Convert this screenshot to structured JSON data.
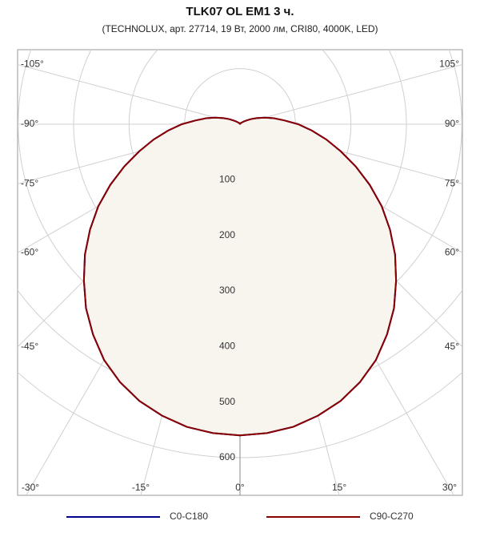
{
  "chart_data": {
    "type": "polar",
    "title": "TLK07 OL EM1 3 ч.",
    "subtitle": "(TECHNOLUX, арт. 27714, 19 Вт, 2000 лм, CRI80, 4000K, LED)",
    "rlim": [
      0,
      600
    ],
    "rticks": [
      100,
      200,
      300,
      400,
      500,
      600
    ],
    "thetaticks": [
      {
        "value": -105,
        "label": "-105°"
      },
      {
        "value": -90,
        "label": "-90°"
      },
      {
        "value": -75,
        "label": "-75°"
      },
      {
        "value": -60,
        "label": "-60°"
      },
      {
        "value": -45,
        "label": "-45°"
      },
      {
        "value": -30,
        "label": "-30°"
      },
      {
        "value": -15,
        "label": "-15°"
      },
      {
        "value": 0,
        "label": "0°"
      },
      {
        "value": 15,
        "label": "15°"
      },
      {
        "value": 30,
        "label": "30°"
      },
      {
        "value": 45,
        "label": "45°"
      },
      {
        "value": 60,
        "label": "60°"
      },
      {
        "value": 75,
        "label": "75°"
      },
      {
        "value": 90,
        "label": "90°"
      },
      {
        "value": 105,
        "label": "105°"
      }
    ],
    "x": [
      0,
      5,
      10,
      15,
      20,
      25,
      30,
      35,
      40,
      45,
      50,
      55,
      60,
      65,
      70,
      75,
      80,
      85,
      90,
      95,
      100,
      105,
      110,
      115,
      120,
      125,
      130,
      135,
      140,
      145,
      150,
      155,
      160,
      165,
      170,
      175,
      180
    ],
    "fill_color": "#f8f4ee",
    "series": [
      {
        "name": "C0-C180",
        "color": "#00008b",
        "values": [
          560,
          558,
          553,
          543,
          530,
          512,
          490,
          462,
          432,
          398,
          365,
          330,
          295,
          258,
          222,
          188,
          158,
          130,
          105,
          80,
          62,
          46,
          32,
          22,
          14,
          9,
          6,
          4,
          3,
          2,
          2,
          1,
          1,
          1,
          1,
          1,
          1
        ]
      },
      {
        "name": "C90-C270",
        "color": "#8b0000",
        "values": [
          560,
          558,
          553,
          543,
          530,
          512,
          490,
          462,
          432,
          398,
          365,
          330,
          295,
          258,
          222,
          188,
          158,
          130,
          105,
          80,
          62,
          46,
          32,
          22,
          14,
          9,
          6,
          4,
          3,
          2,
          2,
          1,
          1,
          1,
          1,
          1,
          1
        ]
      }
    ]
  }
}
